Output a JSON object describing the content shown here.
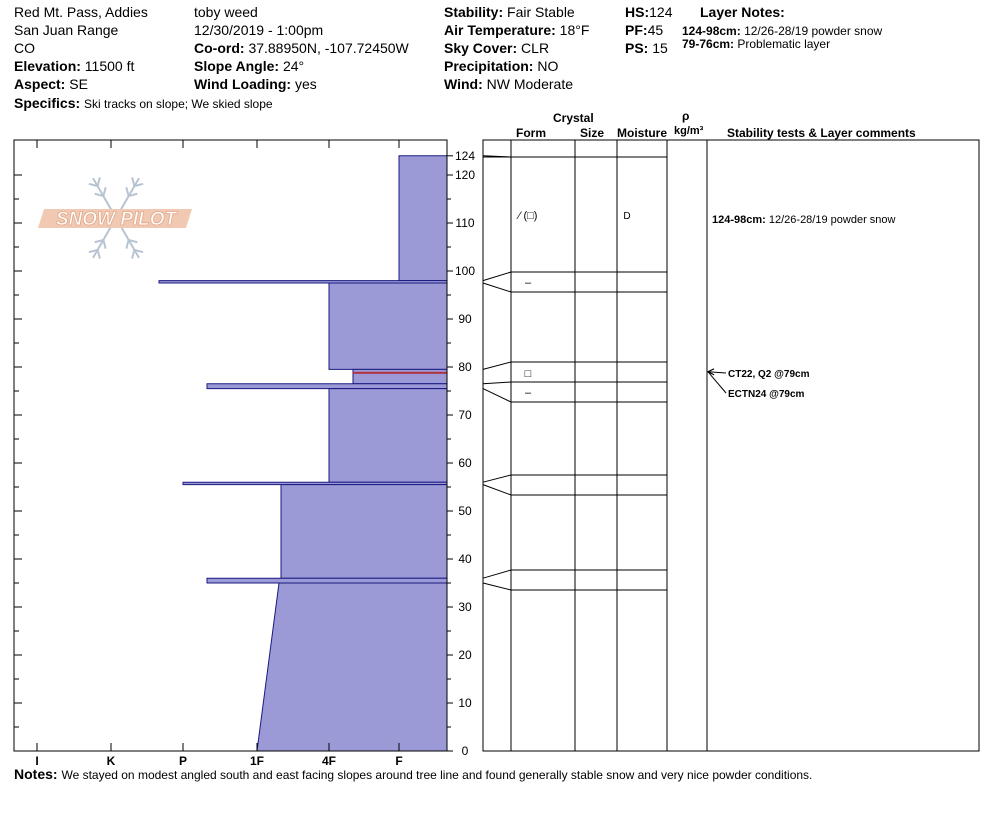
{
  "header": {
    "location": "Red Mt. Pass, Addies",
    "range": "San Juan Range",
    "state": "CO",
    "elevation_label": "Elevation:",
    "elevation": "11500 ft",
    "aspect_label": "Aspect:",
    "aspect": "SE",
    "specifics_label": "Specifics:",
    "specifics": "Ski tracks on slope; We skied slope",
    "observer": "toby weed",
    "datetime": "12/30/2019 - 1:00pm",
    "coord_label": "Co-ord:",
    "coord": "37.88950N, -107.72450W",
    "slope_label": "Slope Angle:",
    "slope": "24°",
    "wind_loading_label": "Wind Loading:",
    "wind_loading": "yes",
    "stability_label": "Stability:",
    "stability": "Fair Stable",
    "air_temp_label": "Air Temperature:",
    "air_temp": "18°F",
    "sky_label": "Sky Cover:",
    "sky": "CLR",
    "precip_label": "Precipitation:",
    "precip": "NO",
    "wind_label": "Wind:",
    "wind": "NW Moderate",
    "hs_label": "HS:",
    "hs": "124",
    "pf_label": "PF:",
    "pf": "45",
    "ps_label": "PS:",
    "ps": "15",
    "layer_notes_title": "Layer Notes:",
    "layer_notes": [
      {
        "range": "124-98cm:",
        "text": "12/26-28/19 powder snow"
      },
      {
        "range": "79-76cm:",
        "text": "Problematic layer"
      }
    ]
  },
  "table_headers": {
    "crystal": "Crystal",
    "form": "Form",
    "size": "Size",
    "moisture": "Moisture",
    "rho": "ρ",
    "density_unit": "kg/m³",
    "stability": "Stability tests & Layer comments"
  },
  "logo_text": "SNOW PILOT",
  "notes_label": "Notes:",
  "notes": "We stayed on modest angled south and east facing slopes around tree line and found generally stable snow and very nice powder conditions.",
  "chart_data": {
    "type": "area",
    "title": "",
    "ylabel": "",
    "xlabel": "",
    "height_axis": {
      "range": [
        0,
        124
      ],
      "ticks": [
        0,
        10,
        20,
        30,
        40,
        50,
        60,
        70,
        80,
        90,
        100,
        110,
        120,
        124
      ]
    },
    "hardness_axis": {
      "ticks": [
        "I",
        "K",
        "P",
        "1F",
        "4F",
        "F"
      ],
      "direction": "right-to-left"
    },
    "fill_color": "#9b9ad6",
    "highlight_color": "#b03040",
    "hardness_profile": [
      {
        "top": 124,
        "bottom": 98,
        "hardness": "F"
      },
      {
        "top": 98,
        "bottom": 97.5,
        "hardness": "P-"
      },
      {
        "top": 97.5,
        "bottom": 79.5,
        "hardness": "4F"
      },
      {
        "top": 79.5,
        "bottom": 76.5,
        "hardness": "4F+"
      },
      {
        "top": 76.5,
        "bottom": 75.5,
        "hardness": "P+"
      },
      {
        "top": 75.5,
        "bottom": 56,
        "hardness": "4F"
      },
      {
        "top": 56,
        "bottom": 55.5,
        "hardness": "P"
      },
      {
        "top": 55.5,
        "bottom": 36,
        "hardness": "1F+"
      },
      {
        "top": 36,
        "bottom": 35,
        "hardness": "P+"
      },
      {
        "top": 35,
        "bottom": 0,
        "hardness": "1F to 1F-",
        "sloped": true
      }
    ],
    "problematic_layer": {
      "top": 79,
      "bottom": 76
    }
  },
  "layers_table": {
    "boundaries": [
      124,
      98,
      97.5,
      79.5,
      76.5,
      75.5,
      56,
      55.5,
      36,
      35,
      0
    ],
    "entries": [
      {
        "form": "⁄ (□)",
        "moisture": "D",
        "comment_range": "124-98cm:",
        "comment": "12/26-28/19 powder snow"
      },
      {
        "form": "–"
      },
      {
        "form": "□"
      },
      {
        "form": "–"
      }
    ],
    "tests": [
      "CT22, Q2 @79cm",
      "ECTN24 @79cm"
    ]
  }
}
